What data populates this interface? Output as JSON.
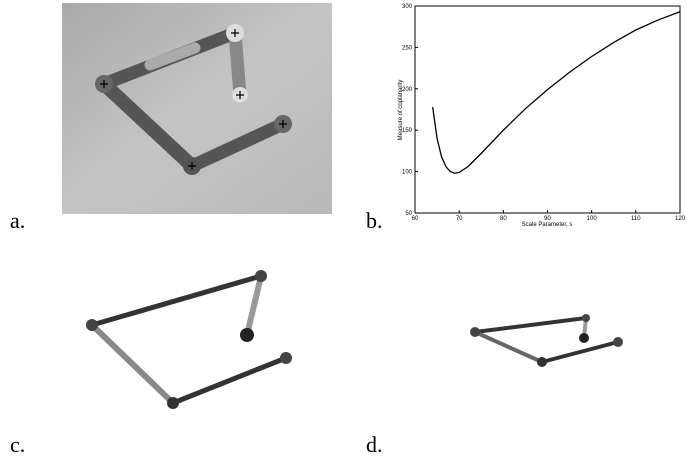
{
  "panels": {
    "a": "a.",
    "b": "b.",
    "c": "c.",
    "d": "d."
  },
  "chart_data": {
    "type": "line",
    "xlabel": "Scale Parameter, s",
    "ylabel": "Measure of coplanarity",
    "x": [
      64,
      65,
      66,
      67,
      68,
      69,
      70,
      72,
      75,
      80,
      85,
      90,
      95,
      100,
      105,
      110,
      115,
      120
    ],
    "values": [
      178,
      140,
      118,
      106,
      100,
      98,
      99,
      106,
      122,
      150,
      176,
      199,
      220,
      239,
      256,
      271,
      283,
      293
    ],
    "color": "#000000",
    "xlim": [
      60,
      120
    ],
    "xticks": [
      60,
      70,
      80,
      90,
      100,
      110,
      120
    ],
    "ylim": [
      50,
      300
    ],
    "yticks": [
      50,
      100,
      150,
      200,
      250,
      300
    ]
  }
}
